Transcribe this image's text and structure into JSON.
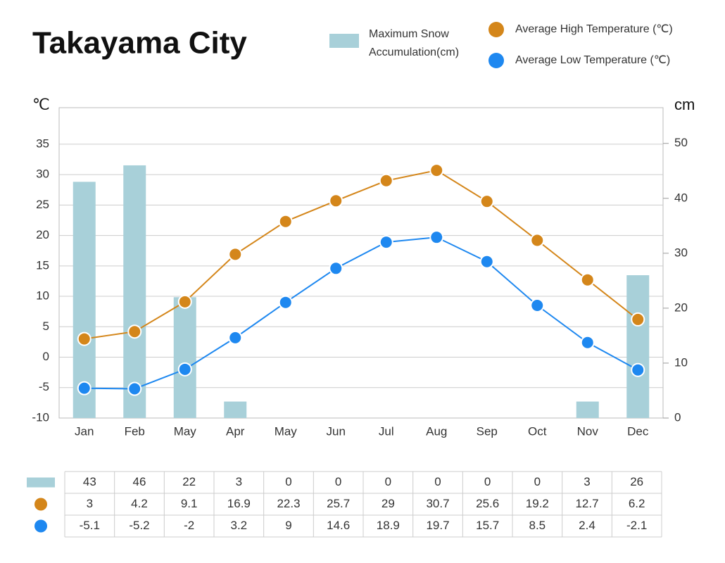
{
  "chart_data": {
    "type": "bar",
    "title": "Takayama City",
    "categories": [
      "Jan",
      "Feb",
      "May",
      "Apr",
      "May",
      "Jun",
      "Jul",
      "Aug",
      "Sep",
      "Oct",
      "Nov",
      "Dec"
    ],
    "series": [
      {
        "name": "Maximum Snow Accumulation(cm)",
        "type": "bar",
        "axis": "y2",
        "color": "#a8d0d9",
        "values": [
          43,
          46,
          22,
          3,
          0,
          0,
          0,
          0,
          0,
          0,
          3,
          26
        ]
      },
      {
        "name": "Average High Temperature (℃)",
        "type": "line",
        "color": "#d4861a",
        "values": [
          3,
          4.2,
          9.1,
          16.9,
          22.3,
          25.7,
          29,
          30.7,
          25.6,
          19.2,
          12.7,
          6.2
        ]
      },
      {
        "name": "Average Low Temperature (℃)",
        "type": "line",
        "color": "#1e88f0",
        "values": [
          -5.1,
          -5.2,
          -2,
          3.2,
          9,
          14.6,
          18.9,
          19.7,
          15.7,
          8.5,
          2.4,
          -2.1
        ]
      }
    ],
    "y_label": "℃",
    "y2_label": "cm",
    "ylim": [
      -10,
      41
    ],
    "yticks": [
      -10,
      -5,
      0,
      5,
      10,
      15,
      20,
      25,
      30,
      35
    ],
    "y2lim": [
      0,
      56.5
    ],
    "y2ticks": [
      0,
      10,
      20,
      30,
      40,
      50
    ],
    "grid": true
  }
}
